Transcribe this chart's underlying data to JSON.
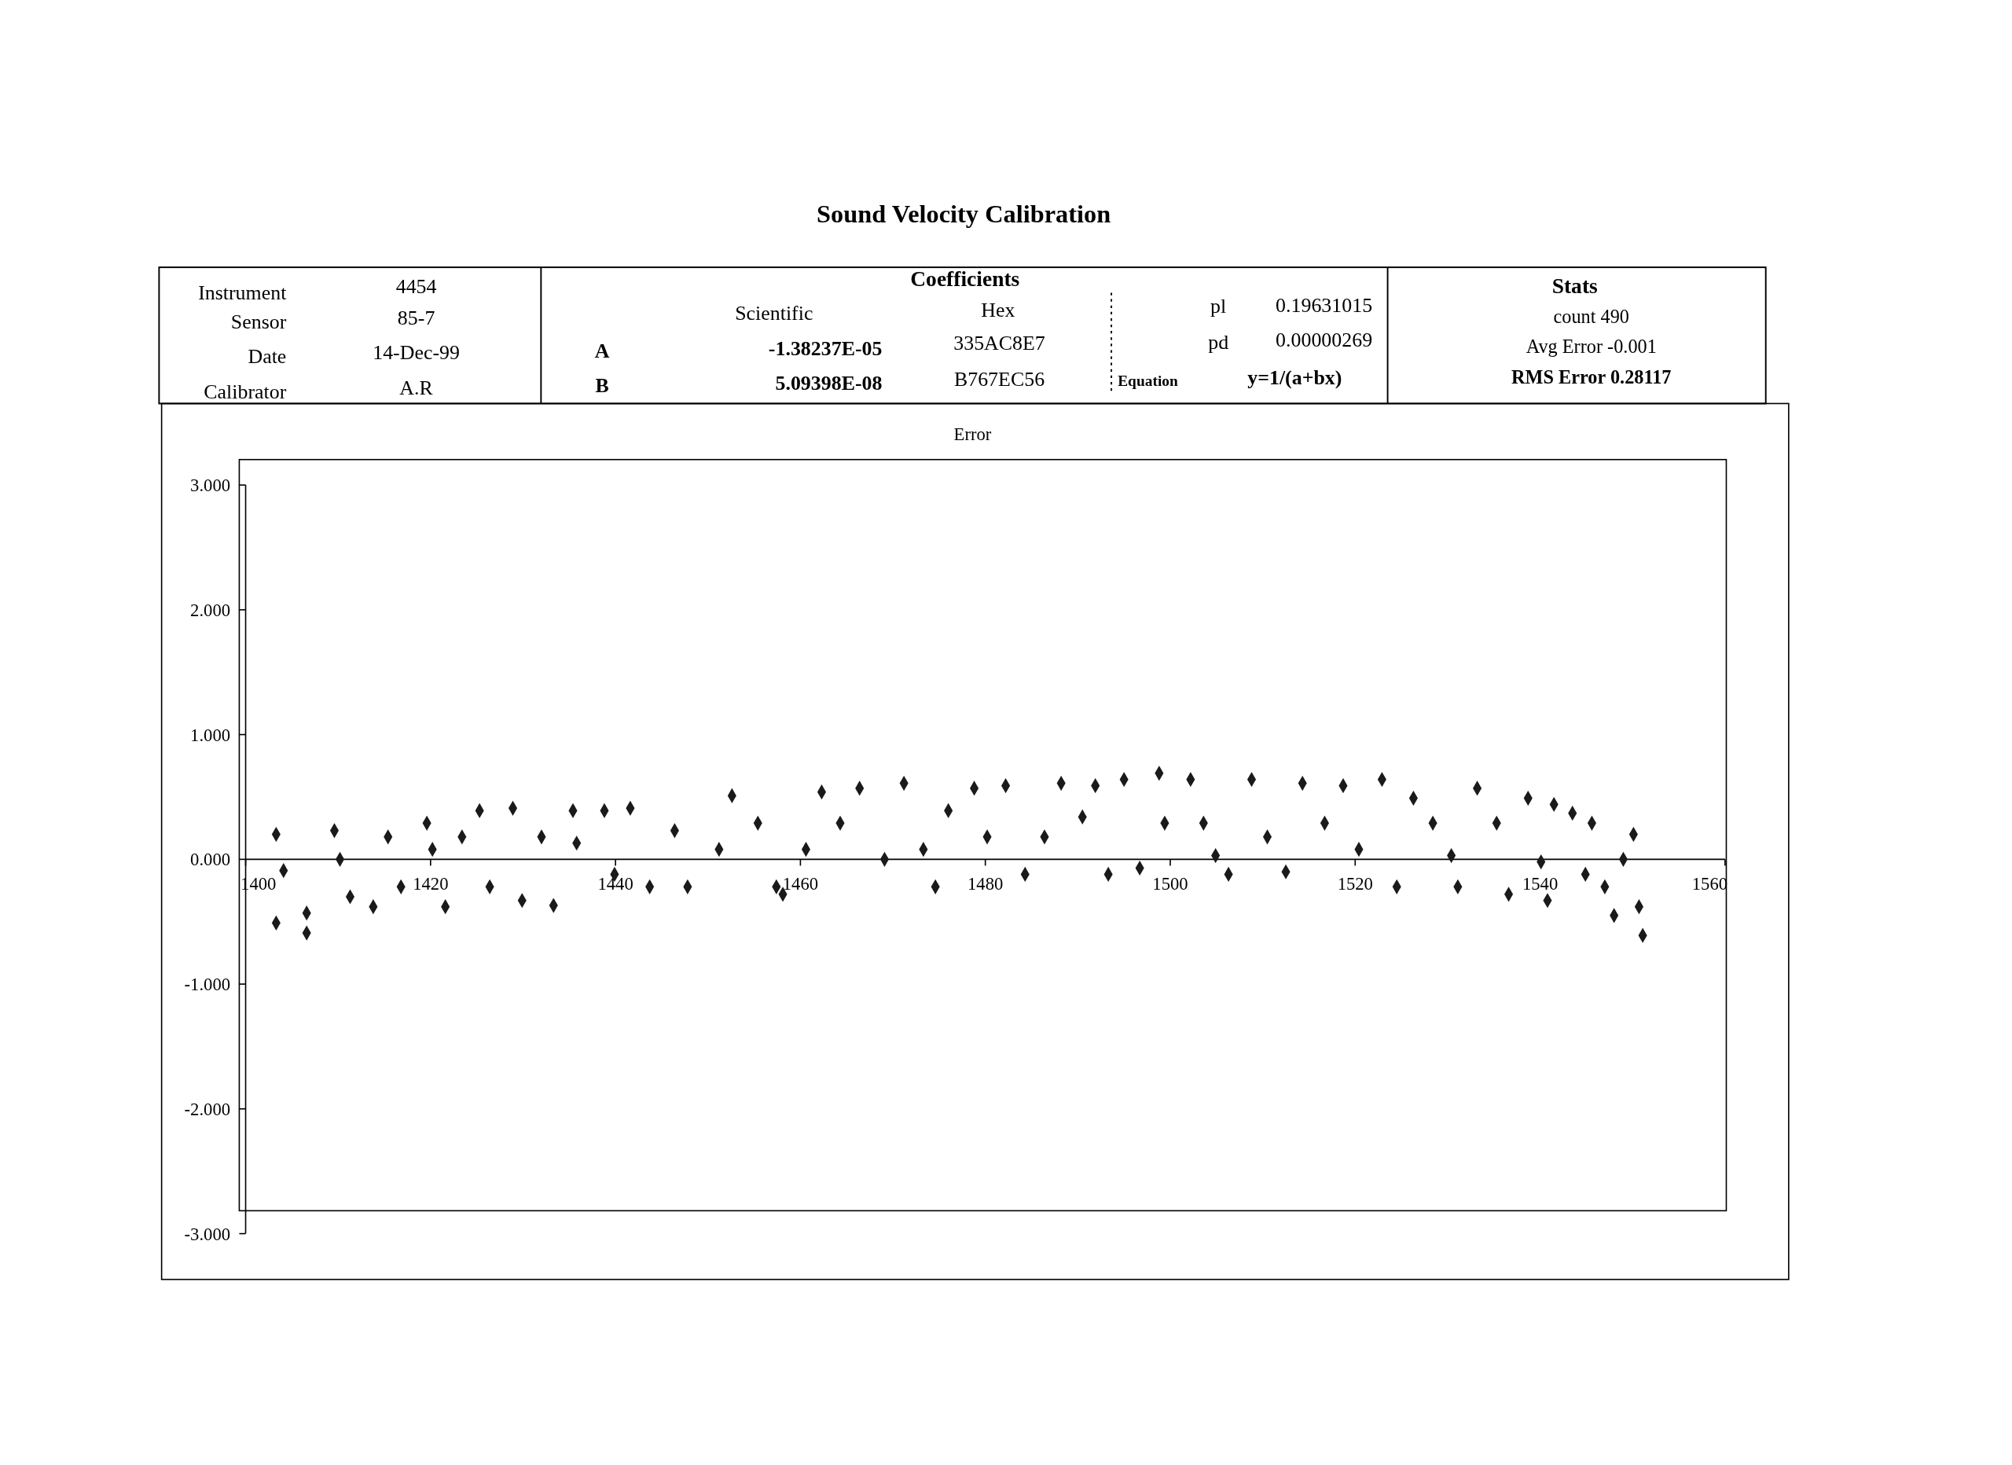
{
  "chart_data": {
    "type": "scatter",
    "title": "Sound Velocity Calibration",
    "subtitle": "Error",
    "annotations": [
      "Instrument",
      "4454",
      "Sensor",
      "85-7",
      "Date",
      "14-Dec-99",
      "Calibrator",
      "A.R",
      "Coefficients",
      "Scientific",
      "Hex",
      "A",
      "-1.38237E-05",
      "335AC8E7",
      "B",
      "5.09398E-08",
      "B767EC56",
      "pl",
      "0.19631015",
      "pd",
      "0.00000269",
      "Equation",
      "y=1/(a+bx)",
      "Stats",
      "count 490",
      "Avg Error -0.001",
      "RMS Error 0.28117"
    ],
    "xlim": [
      1400,
      1560
    ],
    "xticks": [
      1400,
      1420,
      1440,
      1460,
      1480,
      1500,
      1520,
      1540,
      1560
    ],
    "ylim": [
      -3,
      3
    ],
    "yticks": [
      {
        "value": -3,
        "label": "-3.000"
      },
      {
        "value": -2,
        "label": "-2.000"
      },
      {
        "value": -1,
        "label": "-1.000"
      },
      {
        "value": 0,
        "label": "0.000"
      },
      {
        "value": 1,
        "label": "1.000"
      },
      {
        "value": 2,
        "label": "2.000"
      },
      {
        "value": 3,
        "label": "3.000"
      }
    ],
    "grid": false,
    "marker": "diamond",
    "series": [
      {
        "color": "#1a1a1a",
        "x": [
          1403.3,
          1403.3,
          1404.1,
          1406.6,
          1406.6,
          1409.6,
          1410.2,
          1411.3,
          1413.8,
          1415.4,
          1416.8,
          1419.6,
          1420.2,
          1421.6,
          1423.4,
          1425.3,
          1426.4,
          1428.9,
          1429.9,
          1432.0,
          1433.3,
          1435.4,
          1435.8,
          1438.8,
          1439.9,
          1441.6,
          1443.7,
          1446.4,
          1447.8,
          1451.2,
          1452.6,
          1455.4,
          1457.4,
          1458.1,
          1460.6,
          1462.3,
          1464.3,
          1466.4,
          1469.1,
          1471.2,
          1473.3,
          1474.6,
          1476.0,
          1478.8,
          1480.2,
          1482.2,
          1484.3,
          1486.4,
          1488.2,
          1490.5,
          1491.9,
          1493.3,
          1495.0,
          1496.7,
          1498.8,
          1499.4,
          1502.2,
          1503.6,
          1504.9,
          1506.3,
          1508.8,
          1510.5,
          1512.5,
          1514.3,
          1516.7,
          1518.7,
          1520.4,
          1522.9,
          1524.5,
          1526.3,
          1528.4,
          1530.4,
          1531.1,
          1533.2,
          1535.3,
          1536.6,
          1538.7,
          1540.1,
          1540.8,
          1541.5,
          1543.5,
          1544.9,
          1545.6,
          1547.0,
          1548.0,
          1549.0,
          1550.1,
          1550.7,
          1551.1
        ],
        "values": [
          0.2,
          -0.51,
          -0.09,
          -0.43,
          -0.59,
          0.23,
          0.0,
          -0.3,
          -0.38,
          0.18,
          -0.22,
          0.29,
          0.08,
          -0.38,
          0.18,
          0.39,
          -0.22,
          0.41,
          -0.33,
          0.18,
          -0.37,
          0.39,
          0.13,
          0.39,
          -0.12,
          0.41,
          -0.22,
          0.23,
          -0.22,
          0.08,
          0.51,
          0.29,
          -0.22,
          -0.28,
          0.08,
          0.54,
          0.29,
          0.57,
          0.0,
          0.61,
          0.08,
          -0.22,
          0.39,
          0.57,
          0.18,
          0.59,
          -0.12,
          0.18,
          0.61,
          0.34,
          0.59,
          -0.12,
          0.64,
          -0.07,
          0.69,
          0.29,
          0.64,
          0.29,
          0.03,
          -0.12,
          0.64,
          0.18,
          -0.1,
          0.61,
          0.29,
          0.59,
          0.08,
          0.64,
          -0.22,
          0.49,
          0.29,
          0.03,
          -0.22,
          0.57,
          0.29,
          -0.28,
          0.49,
          -0.02,
          -0.33,
          0.44,
          0.37,
          -0.12,
          0.29,
          -0.22,
          -0.45,
          0.0,
          0.2,
          -0.38,
          -0.61
        ]
      }
    ]
  }
}
